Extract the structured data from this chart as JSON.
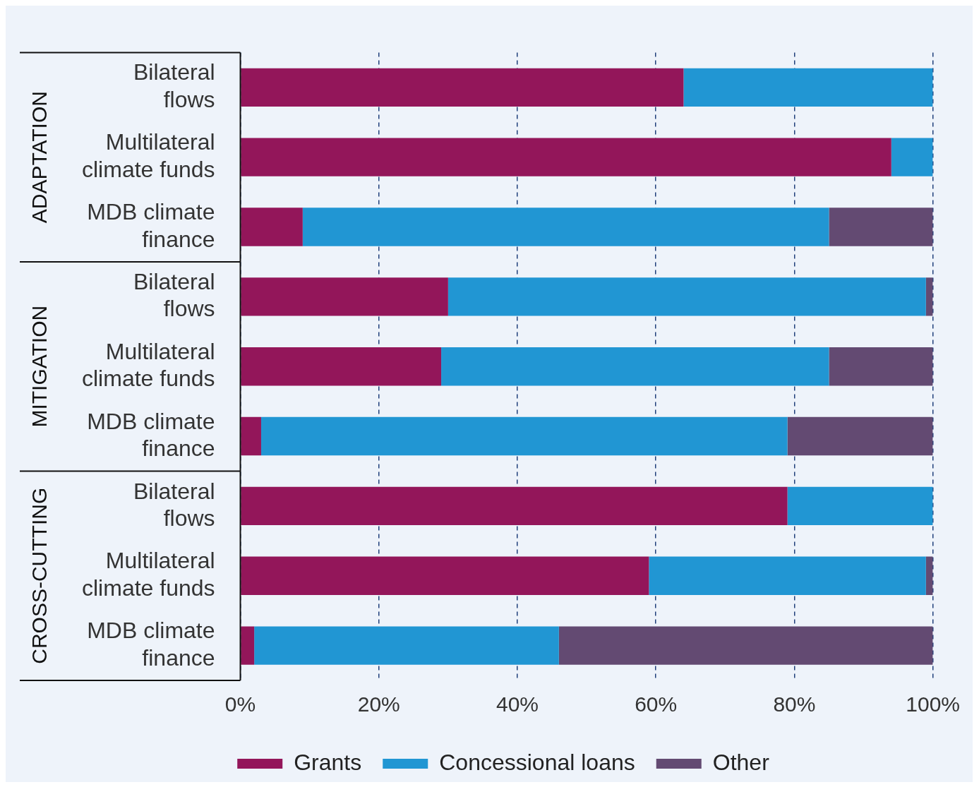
{
  "chart_data": {
    "type": "bar",
    "orientation": "horizontal",
    "stacked": true,
    "categories": [
      "Bilateral flows",
      "Multilateral climate funds",
      "MDB climate finance",
      "Bilateral flows",
      "Multilateral climate funds",
      "MDB climate finance",
      "Bilateral flows",
      "Multilateral climate funds",
      "MDB climate finance"
    ],
    "series": [
      {
        "name": "Grants",
        "color": "#93165a",
        "values": [
          64,
          94,
          9,
          30,
          29,
          3,
          79,
          59,
          2
        ]
      },
      {
        "name": "Concessional loans",
        "color": "#2196d3",
        "values": [
          36,
          6,
          76,
          69,
          56,
          76,
          21,
          40,
          44
        ]
      },
      {
        "name": "Other",
        "color": "#634a72",
        "values": [
          0,
          0,
          15,
          1,
          15,
          21,
          0,
          1,
          54
        ]
      }
    ],
    "xlim": [
      0,
      100
    ],
    "xticks": [
      {
        "value": 0,
        "label": "0%"
      },
      {
        "value": 20,
        "label": "20%"
      },
      {
        "value": 40,
        "label": "40%"
      },
      {
        "value": 60,
        "label": "60%"
      },
      {
        "value": 80,
        "label": "80%"
      },
      {
        "value": 100,
        "label": "100%"
      }
    ],
    "grid": "x",
    "legend": "bottom",
    "annotations": [
      "ADAPTATION",
      "MITIGATION",
      "CROSS-CUTTING"
    ]
  }
}
